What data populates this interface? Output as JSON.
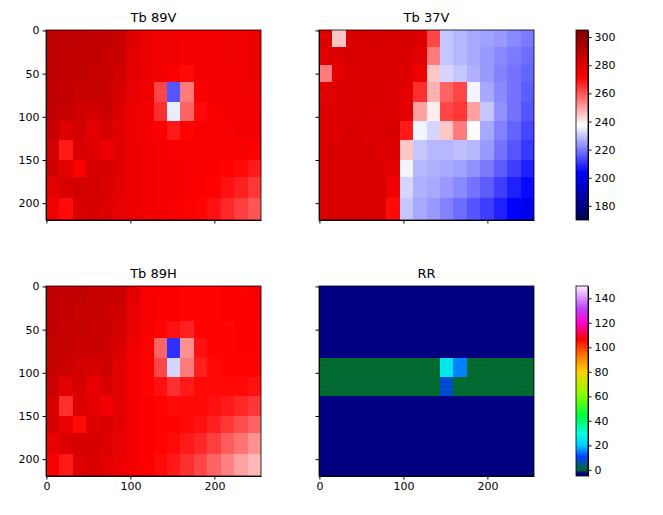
{
  "chart_data": [
    {
      "type": "heatmap",
      "title": "Tb 89V",
      "color": "seismic",
      "x_edges": [
        -0.5,
        15.5,
        31.5,
        47.5,
        63.5,
        79.5,
        95.5,
        111.5,
        127.5,
        143.5,
        159.5,
        175.5,
        191.5,
        207.5,
        223.5,
        239.5,
        255.5
      ],
      "y_edges": [
        -0.5,
        19.5,
        39.5,
        59.5,
        82.5,
        104.5,
        126.5,
        149.5,
        169.5,
        194.5,
        219.5
      ],
      "xlim": [
        -0.5,
        255.5
      ],
      "ylim": [
        219.5,
        -0.5
      ],
      "xticks": [
        0,
        100,
        200
      ],
      "yticks": [
        0,
        50,
        100,
        150,
        200
      ],
      "tick_labels": "y",
      "clim": [
        170,
        305
      ],
      "values": [
        [
          288,
          288,
          288,
          287,
          287,
          286,
          280,
          276,
          275,
          275,
          274,
          274,
          274,
          275,
          275,
          276
        ],
        [
          288,
          288,
          287,
          287,
          286,
          285,
          279,
          276,
          275,
          275,
          274,
          274,
          274,
          275,
          275,
          276
        ],
        [
          288,
          287,
          287,
          286,
          286,
          284,
          278,
          276,
          274,
          272,
          270,
          274,
          274,
          274,
          275,
          276
        ],
        [
          287,
          287,
          286,
          286,
          285,
          282,
          277,
          275,
          262,
          215,
          255,
          272,
          274,
          274,
          275,
          275
        ],
        [
          287,
          286,
          284,
          283,
          285,
          280,
          276,
          274,
          265,
          235,
          258,
          270,
          273,
          274,
          274,
          275
        ],
        [
          286,
          280,
          283,
          279,
          282,
          279,
          276,
          274,
          272,
          268,
          271,
          273,
          273,
          273,
          274,
          274
        ],
        [
          283,
          268,
          281,
          280,
          276,
          280,
          276,
          275,
          274,
          273,
          273,
          273,
          273,
          273,
          273,
          272
        ],
        [
          284,
          279,
          272,
          281,
          282,
          279,
          276,
          275,
          274,
          274,
          273,
          273,
          272,
          271,
          270,
          268
        ],
        [
          278,
          281,
          283,
          282,
          281,
          278,
          276,
          275,
          274,
          274,
          273,
          272,
          271,
          269,
          267,
          264
        ],
        [
          275,
          270,
          281,
          282,
          280,
          277,
          276,
          275,
          274,
          273,
          272,
          271,
          269,
          266,
          263,
          260
        ]
      ]
    },
    {
      "type": "heatmap",
      "title": "Tb 37V",
      "color": "seismic",
      "x_edges": [
        -0.5,
        15.5,
        31.5,
        47.5,
        63.5,
        79.5,
        95.5,
        111.5,
        127.5,
        143.5,
        159.5,
        175.5,
        191.5,
        207.5,
        223.5,
        239.5,
        255.5
      ],
      "y_edges": [
        -0.5,
        19.5,
        39.5,
        59.5,
        82.5,
        104.5,
        126.5,
        149.5,
        169.5,
        194.5,
        219.5
      ],
      "xlim": [
        -0.5,
        255.5
      ],
      "ylim": [
        219.5,
        -0.5
      ],
      "xticks": [
        0,
        100,
        200
      ],
      "yticks": [
        0,
        50,
        100,
        150,
        200
      ],
      "tick_labels": false,
      "clim": [
        170,
        305
      ],
      "cticks": [
        180,
        200,
        220,
        240,
        260,
        280,
        300
      ],
      "values": [
        [
          280,
          245,
          281,
          281,
          282,
          281,
          281,
          280,
          262,
          230,
          228,
          226,
          225,
          224,
          222,
          220
        ],
        [
          279,
          280,
          281,
          281,
          281,
          281,
          281,
          279,
          255,
          230,
          228,
          226,
          224,
          222,
          220,
          218
        ],
        [
          255,
          279,
          280,
          281,
          281,
          281,
          280,
          275,
          245,
          232,
          230,
          227,
          224,
          221,
          219,
          217
        ],
        [
          279,
          280,
          280,
          281,
          281,
          280,
          279,
          265,
          248,
          258,
          262,
          236,
          226,
          222,
          219,
          216
        ],
        [
          280,
          280,
          280,
          281,
          280,
          280,
          279,
          250,
          240,
          262,
          264,
          250,
          230,
          223,
          219,
          215
        ],
        [
          280,
          280,
          281,
          280,
          280,
          281,
          268,
          236,
          232,
          245,
          255,
          238,
          226,
          221,
          217,
          213
        ],
        [
          280,
          281,
          281,
          281,
          280,
          280,
          245,
          230,
          228,
          228,
          229,
          228,
          224,
          219,
          215,
          211
        ],
        [
          281,
          281,
          281,
          281,
          281,
          279,
          236,
          228,
          227,
          226,
          225,
          223,
          220,
          216,
          212,
          208
        ],
        [
          281,
          281,
          281,
          281,
          281,
          275,
          232,
          227,
          226,
          224,
          222,
          219,
          216,
          212,
          208,
          205
        ],
        [
          281,
          281,
          281,
          281,
          281,
          270,
          230,
          226,
          224,
          221,
          218,
          215,
          212,
          208,
          204,
          200
        ]
      ]
    },
    {
      "type": "heatmap",
      "title": "Tb 89H",
      "color": "seismic",
      "x_edges": [
        -0.5,
        15.5,
        31.5,
        47.5,
        63.5,
        79.5,
        95.5,
        111.5,
        127.5,
        143.5,
        159.5,
        175.5,
        191.5,
        207.5,
        223.5,
        239.5,
        255.5
      ],
      "y_edges": [
        -0.5,
        19.5,
        39.5,
        59.5,
        82.5,
        104.5,
        126.5,
        149.5,
        169.5,
        194.5,
        219.5
      ],
      "xlim": [
        -0.5,
        255.5
      ],
      "ylim": [
        219.5,
        -0.5
      ],
      "xticks": [
        0,
        100,
        200
      ],
      "yticks": [
        0,
        50,
        100,
        150,
        200
      ],
      "tick_labels": true,
      "clim": [
        170,
        305
      ],
      "values": [
        [
          287,
          287,
          287,
          286,
          286,
          285,
          278,
          273,
          272,
          272,
          271,
          271,
          271,
          272,
          272,
          273
        ],
        [
          287,
          287,
          286,
          286,
          285,
          284,
          277,
          273,
          272,
          272,
          271,
          271,
          271,
          272,
          272,
          273
        ],
        [
          287,
          286,
          286,
          285,
          285,
          283,
          276,
          273,
          271,
          269,
          267,
          271,
          271,
          271,
          272,
          272
        ],
        [
          286,
          286,
          285,
          285,
          284,
          281,
          275,
          272,
          258,
          210,
          252,
          269,
          271,
          271,
          272,
          272
        ],
        [
          286,
          285,
          283,
          282,
          284,
          279,
          274,
          271,
          262,
          232,
          255,
          267,
          270,
          271,
          271,
          271
        ],
        [
          285,
          278,
          282,
          277,
          281,
          278,
          274,
          271,
          269,
          265,
          268,
          270,
          270,
          270,
          270,
          269
        ],
        [
          282,
          265,
          280,
          279,
          274,
          279,
          274,
          272,
          271,
          270,
          270,
          270,
          269,
          268,
          266,
          264
        ],
        [
          283,
          277,
          270,
          280,
          281,
          278,
          274,
          272,
          271,
          271,
          270,
          269,
          267,
          264,
          261,
          258
        ],
        [
          277,
          280,
          282,
          281,
          280,
          277,
          274,
          272,
          271,
          270,
          268,
          266,
          263,
          259,
          256,
          252
        ],
        [
          273,
          268,
          280,
          281,
          279,
          276,
          274,
          272,
          270,
          268,
          265,
          262,
          258,
          254,
          250,
          247
        ]
      ]
    },
    {
      "type": "heatmap",
      "title": "RR",
      "color": "gist_ncar",
      "x_edges": [
        -0.5,
        15.5,
        31.5,
        47.5,
        63.5,
        79.5,
        95.5,
        111.5,
        127.5,
        143.5,
        159.5,
        175.5,
        191.5,
        207.5,
        223.5,
        239.5,
        255.5
      ],
      "y_edges": [
        -0.5,
        19.5,
        39.5,
        59.5,
        82.5,
        104.5,
        126.5,
        149.5,
        169.5,
        194.5,
        219.5
      ],
      "xlim": [
        -0.5,
        255.5
      ],
      "ylim": [
        219.5,
        -0.5
      ],
      "xticks": [
        0,
        100,
        200
      ],
      "yticks": [
        0,
        50,
        100,
        150,
        200
      ],
      "tick_labels": "x",
      "clim": [
        -5,
        150
      ],
      "cticks": [
        0,
        20,
        40,
        60,
        80,
        100,
        120,
        140
      ],
      "values": [
        [
          -5,
          -5,
          -5,
          -5,
          -5,
          -5,
          -5,
          -5,
          -5,
          -5,
          -5,
          -5,
          -5,
          -5,
          -5,
          -5
        ],
        [
          -5,
          -5,
          -5,
          -5,
          -5,
          -5,
          -5,
          -5,
          -5,
          -5,
          -5,
          -5,
          -5,
          -5,
          -5,
          -5
        ],
        [
          -5,
          -5,
          -5,
          -5,
          -5,
          -5,
          -5,
          -5,
          -5,
          -5,
          -5,
          -5,
          -5,
          -5,
          -5,
          -5
        ],
        [
          -5,
          -5,
          -5,
          -5,
          -5,
          -5,
          -5,
          -5,
          -5,
          -5,
          -5,
          -5,
          -5,
          -5,
          -5,
          -5
        ],
        [
          0,
          0,
          0,
          0,
          0,
          0,
          0,
          0,
          0,
          25,
          15,
          0,
          0,
          0,
          0,
          0
        ],
        [
          0,
          0,
          0,
          0,
          0,
          0,
          0,
          0,
          0,
          8,
          0,
          0,
          0,
          0,
          0,
          0
        ],
        [
          -5,
          -5,
          -5,
          -5,
          -5,
          -5,
          -5,
          -5,
          -5,
          -5,
          -5,
          -5,
          -5,
          -5,
          -5,
          -5
        ],
        [
          -5,
          -5,
          -5,
          -5,
          -5,
          -5,
          -5,
          -5,
          -5,
          -5,
          -5,
          -5,
          -5,
          -5,
          -5,
          -5
        ],
        [
          -5,
          -5,
          -5,
          -5,
          -5,
          -5,
          -5,
          -5,
          -5,
          -5,
          -5,
          -5,
          -5,
          -5,
          -5,
          -5
        ],
        [
          -5,
          -5,
          -5,
          -5,
          -5,
          -5,
          -5,
          -5,
          -5,
          -5,
          -5,
          -5,
          -5,
          -5,
          -5,
          -5
        ]
      ]
    }
  ]
}
